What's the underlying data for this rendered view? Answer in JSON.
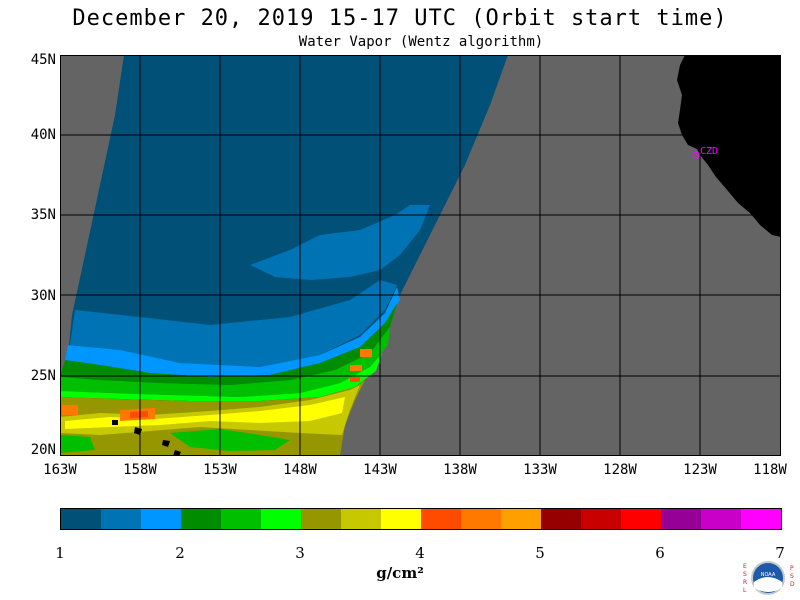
{
  "header": {
    "title": "December 20, 2019  15-17 UTC  (Orbit start time)",
    "subtitle": "Water Vapor (Wentz algorithm)"
  },
  "map": {
    "lat_labels": [
      "45N",
      "40N",
      "35N",
      "30N",
      "25N",
      "20N"
    ],
    "lon_labels": [
      "163W",
      "158W",
      "153W",
      "148W",
      "143W",
      "138W",
      "133W",
      "128W",
      "123W",
      "118W"
    ],
    "station_label": "CZD",
    "colors": {
      "no_data": "#646464",
      "land": "#000000",
      "grid": "#000000"
    }
  },
  "colorbar": {
    "unit": "g/cm²",
    "ticks": [
      "1",
      "2",
      "3",
      "4",
      "5",
      "6",
      "7"
    ],
    "colors": [
      "#005078",
      "#0073b4",
      "#0096ff",
      "#008c00",
      "#00be00",
      "#00ff00",
      "#969600",
      "#c8c800",
      "#ffff00",
      "#ff4b00",
      "#ff7800",
      "#ffa000",
      "#960000",
      "#c80000",
      "#ff0000",
      "#960096",
      "#c800c8",
      "#ff00ff"
    ]
  },
  "logo": {
    "left_letters": "ESRL",
    "right_letters": "PSD",
    "center_text": "NOAA"
  }
}
